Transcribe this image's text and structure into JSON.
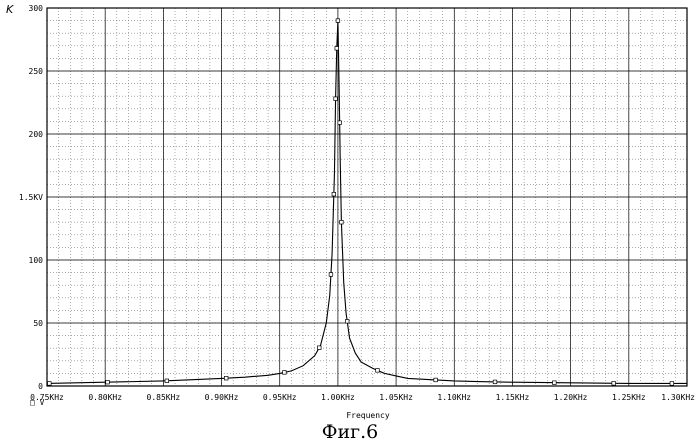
{
  "chart_data": {
    "type": "line",
    "title": "",
    "ylabel": "K",
    "xlabel": "Frequency",
    "x_unit": "KHz",
    "xlim": [
      0.75,
      1.3
    ],
    "ylim": [
      0,
      300
    ],
    "x_ticks": [
      "0.75KHz",
      "0.80KHz",
      "0.85KHz",
      "0.90KHz",
      "0.95KHz",
      "1.00KHz",
      "1.05KHz",
      "1.10KHz",
      "1.15KHz",
      "1.20KHz",
      "1.25KHz",
      "1.30KHz"
    ],
    "y_ticks": [
      {
        "label": "0",
        "value": 0
      },
      {
        "label": "50",
        "value": 50
      },
      {
        "label": "100",
        "value": 100
      },
      {
        "label": "1.5KV",
        "value": 150
      },
      {
        "label": "200",
        "value": 200
      },
      {
        "label": "250",
        "value": 250
      },
      {
        "label": "300",
        "value": 300
      }
    ],
    "grid": true,
    "legend_marker": "□ V",
    "series": [
      {
        "x": [
          0.75,
          0.8,
          0.85,
          0.9,
          0.92,
          0.94,
          0.95,
          0.96,
          0.97,
          0.98,
          0.985,
          0.99,
          0.993,
          0.995,
          0.997,
          0.998,
          0.999,
          1.0,
          1.001,
          1.002,
          1.003,
          1.005,
          1.007,
          1.01,
          1.015,
          1.02,
          1.03,
          1.04,
          1.05,
          1.06,
          1.08,
          1.1,
          1.12,
          1.15,
          1.2,
          1.25,
          1.3
        ],
        "values": [
          2,
          3,
          4,
          6,
          7,
          8.5,
          10,
          12,
          16,
          24,
          32,
          50,
          72,
          105,
          168,
          228,
          268,
          290,
          240,
          178,
          130,
          82,
          58,
          38,
          26,
          19,
          14,
          10,
          8,
          6,
          5,
          4,
          3.5,
          3,
          2.5,
          2,
          2
        ]
      }
    ],
    "markers_x": [
      0.752,
      0.802,
      0.853,
      0.904,
      0.954,
      0.984,
      0.994,
      0.9965,
      0.998,
      0.999,
      1.0,
      1.0015,
      1.003,
      1.008,
      1.034,
      1.084,
      1.135,
      1.186,
      1.237,
      1.287
    ]
  },
  "caption": "Фиг.6"
}
